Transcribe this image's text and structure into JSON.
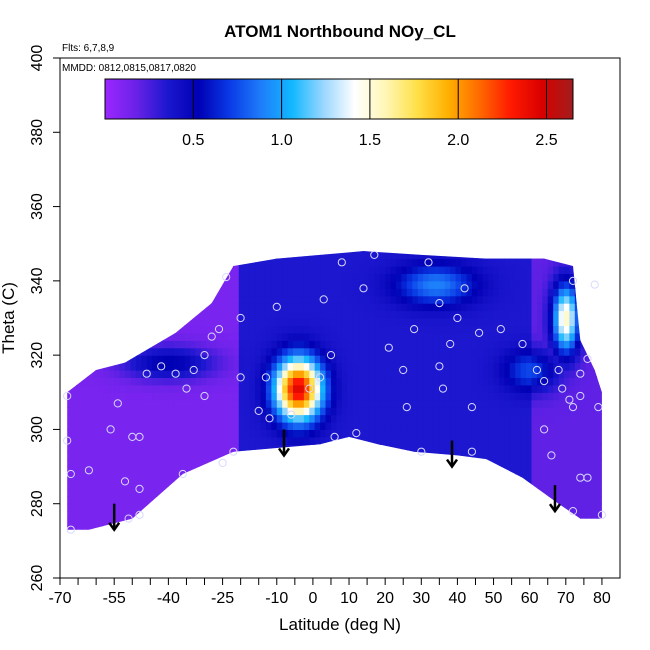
{
  "chart_data": {
    "type": "heatmap",
    "title": "ATOM1 Northbound NOy_CL",
    "flights_note": "Flts: 6,7,8,9",
    "dates_note": "MMDD: 0812,0815,0817,0820",
    "xlabel": "Latitude (deg N)",
    "ylabel": "Theta (C)",
    "xlim": [
      -70,
      85
    ],
    "ylim": [
      260,
      400
    ],
    "x_tick_labels": [
      "-70",
      "-55",
      "-40",
      "-25",
      "-10",
      "0",
      "10",
      "20",
      "30",
      "40",
      "50",
      "60",
      "70",
      "80"
    ],
    "x_ticks": [
      -70,
      -55,
      -40,
      -25,
      -10,
      0,
      10,
      20,
      30,
      40,
      50,
      60,
      70,
      80
    ],
    "x_minor_ticks": [
      -65,
      -60,
      -50,
      -45,
      -35,
      -30,
      -20,
      -15,
      -5,
      5,
      15,
      25,
      35,
      45,
      55,
      65,
      75
    ],
    "y_tick_labels": [
      "260",
      "280",
      "300",
      "320",
      "340",
      "360",
      "380",
      "400"
    ],
    "y_ticks": [
      260,
      280,
      300,
      320,
      340,
      360,
      380,
      400
    ],
    "colorbar": {
      "range": [
        0.0,
        2.65
      ],
      "tick_labels": [
        "0.5",
        "1.0",
        "1.5",
        "2.0",
        "2.5"
      ],
      "ticks": [
        0.5,
        1.0,
        1.5,
        2.0,
        2.5
      ],
      "colors": [
        "#9b27ff",
        "#6a22e8",
        "#1c17cf",
        "#0000b4",
        "#0a3ae6",
        "#1e7dfa",
        "#12b8ff",
        "#9ad6ff",
        "#ffffff",
        "#fff6b4",
        "#ffe048",
        "#ffb000",
        "#ff6a00",
        "#ff1a00",
        "#d80000",
        "#a21d1d"
      ]
    },
    "grid": false,
    "contour_boundary": [
      [
        -68,
        273
      ],
      [
        -62,
        273
      ],
      [
        -58,
        274
      ],
      [
        -50,
        276
      ],
      [
        -36,
        288
      ],
      [
        -22,
        294
      ],
      [
        -10,
        295
      ],
      [
        2,
        296
      ],
      [
        10,
        298
      ],
      [
        18,
        296
      ],
      [
        28,
        294
      ],
      [
        40,
        293
      ],
      [
        48,
        292
      ],
      [
        58,
        287
      ],
      [
        68,
        280
      ],
      [
        74,
        276
      ],
      [
        80,
        276
      ],
      [
        80,
        310
      ],
      [
        78,
        316
      ],
      [
        74,
        324
      ],
      [
        72,
        344
      ],
      [
        64,
        346
      ],
      [
        48,
        346
      ],
      [
        30,
        347
      ],
      [
        14,
        348
      ],
      [
        2,
        347
      ],
      [
        -10,
        346
      ],
      [
        -22,
        344
      ],
      [
        -28,
        334
      ],
      [
        -38,
        326
      ],
      [
        -52,
        318
      ],
      [
        -60,
        316
      ],
      [
        -68,
        310
      ]
    ],
    "value_blobs": [
      {
        "lat": -4,
        "theta": 311,
        "value": 2.45,
        "radius_lat": 7,
        "radius_theta": 9
      },
      {
        "lat": 70,
        "theta": 330,
        "value": 1.55,
        "radius_lat": 4,
        "radius_theta": 10
      },
      {
        "lat": 34,
        "theta": 339,
        "value": 0.9,
        "radius_lat": 12,
        "radius_theta": 6
      },
      {
        "lat": -40,
        "theta": 318,
        "value": 0.55,
        "radius_lat": 14,
        "radius_theta": 5
      },
      {
        "lat": 60,
        "theta": 316,
        "value": 0.75,
        "radius_lat": 8,
        "radius_theta": 6
      }
    ],
    "background_levels": [
      {
        "lat_min": -70,
        "lat_max": -20,
        "value": 0.12
      },
      {
        "lat_min": -20,
        "lat_max": 60,
        "value": 0.35
      },
      {
        "lat_min": 60,
        "lat_max": 85,
        "value": 0.2
      }
    ],
    "sample_points": [
      [
        -68,
        309
      ],
      [
        -68,
        297
      ],
      [
        -67,
        288
      ],
      [
        -67,
        273
      ],
      [
        -62,
        289
      ],
      [
        -56,
        300
      ],
      [
        -54,
        307
      ],
      [
        -50,
        298
      ],
      [
        -48,
        298
      ],
      [
        -52,
        286
      ],
      [
        -48,
        284
      ],
      [
        -51,
        276
      ],
      [
        -48,
        277
      ],
      [
        -36,
        288
      ],
      [
        -35,
        311
      ],
      [
        -33,
        316
      ],
      [
        -38,
        315
      ],
      [
        -30,
        309
      ],
      [
        -25,
        291
      ],
      [
        -22,
        294
      ],
      [
        -20,
        314
      ],
      [
        -13,
        314
      ],
      [
        -12,
        303
      ],
      [
        -15,
        305
      ],
      [
        -6,
        304
      ],
      [
        -1,
        311
      ],
      [
        2,
        314
      ],
      [
        6,
        298
      ],
      [
        5,
        320
      ],
      [
        3,
        335
      ],
      [
        8,
        345
      ],
      [
        -24,
        341
      ],
      [
        -20,
        330
      ],
      [
        -26,
        327
      ],
      [
        -28,
        325
      ],
      [
        -30,
        320
      ],
      [
        -46,
        315
      ],
      [
        -42,
        317
      ],
      [
        -10,
        333
      ],
      [
        12,
        299
      ],
      [
        14,
        338
      ],
      [
        17,
        347
      ],
      [
        21,
        322
      ],
      [
        25,
        316
      ],
      [
        26,
        306
      ],
      [
        30,
        294
      ],
      [
        32,
        345
      ],
      [
        35,
        334
      ],
      [
        35,
        317
      ],
      [
        36,
        311
      ],
      [
        40,
        330
      ],
      [
        44,
        306
      ],
      [
        46,
        326
      ],
      [
        44,
        294
      ],
      [
        52,
        327
      ],
      [
        58,
        323
      ],
      [
        62,
        316
      ],
      [
        64,
        300
      ],
      [
        66,
        293
      ],
      [
        64,
        313
      ],
      [
        68,
        316
      ],
      [
        69,
        311
      ],
      [
        71,
        308
      ],
      [
        72,
        306
      ],
      [
        74,
        309
      ],
      [
        74,
        315
      ],
      [
        76,
        319
      ],
      [
        79,
        306
      ],
      [
        80,
        277
      ],
      [
        72,
        278
      ],
      [
        74,
        287
      ],
      [
        76,
        287
      ],
      [
        72,
        340
      ],
      [
        78,
        339
      ],
      [
        42,
        338
      ],
      [
        28,
        327
      ],
      [
        38,
        323
      ]
    ],
    "arrows": [
      {
        "lat": -55,
        "theta_from": 280,
        "theta_to": 273
      },
      {
        "lat": -8,
        "theta_from": 300,
        "theta_to": 293
      },
      {
        "lat": 38.5,
        "theta_from": 297,
        "theta_to": 290
      },
      {
        "lat": 67,
        "theta_from": 285,
        "theta_to": 278
      }
    ]
  }
}
